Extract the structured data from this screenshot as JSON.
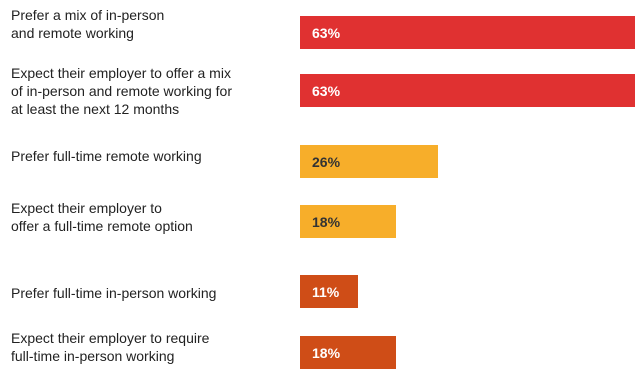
{
  "chart_data": {
    "type": "bar",
    "orientation": "horizontal",
    "title": "",
    "xlabel": "",
    "ylabel": "",
    "xlim": [
      0,
      100
    ],
    "categories": [
      "Prefer a mix of in-person\nand remote working",
      "Expect their employer to offer a mix\nof in-person and remote working for\nat least the next 12 months",
      "Prefer full-time remote working",
      "Expect their employer to\noffer a full-time remote option",
      "Prefer full-time in-person working",
      "Expect their employer to require\nfull-time in-person working"
    ],
    "values": [
      63,
      63,
      26,
      18,
      11,
      18
    ],
    "value_labels": [
      "63%",
      "63%",
      "26%",
      "18%",
      "11%",
      "18%"
    ],
    "colors": [
      "#e03131",
      "#e03131",
      "#f7ae2a",
      "#f7ae2a",
      "#cf4d17",
      "#cf4d17"
    ]
  }
}
